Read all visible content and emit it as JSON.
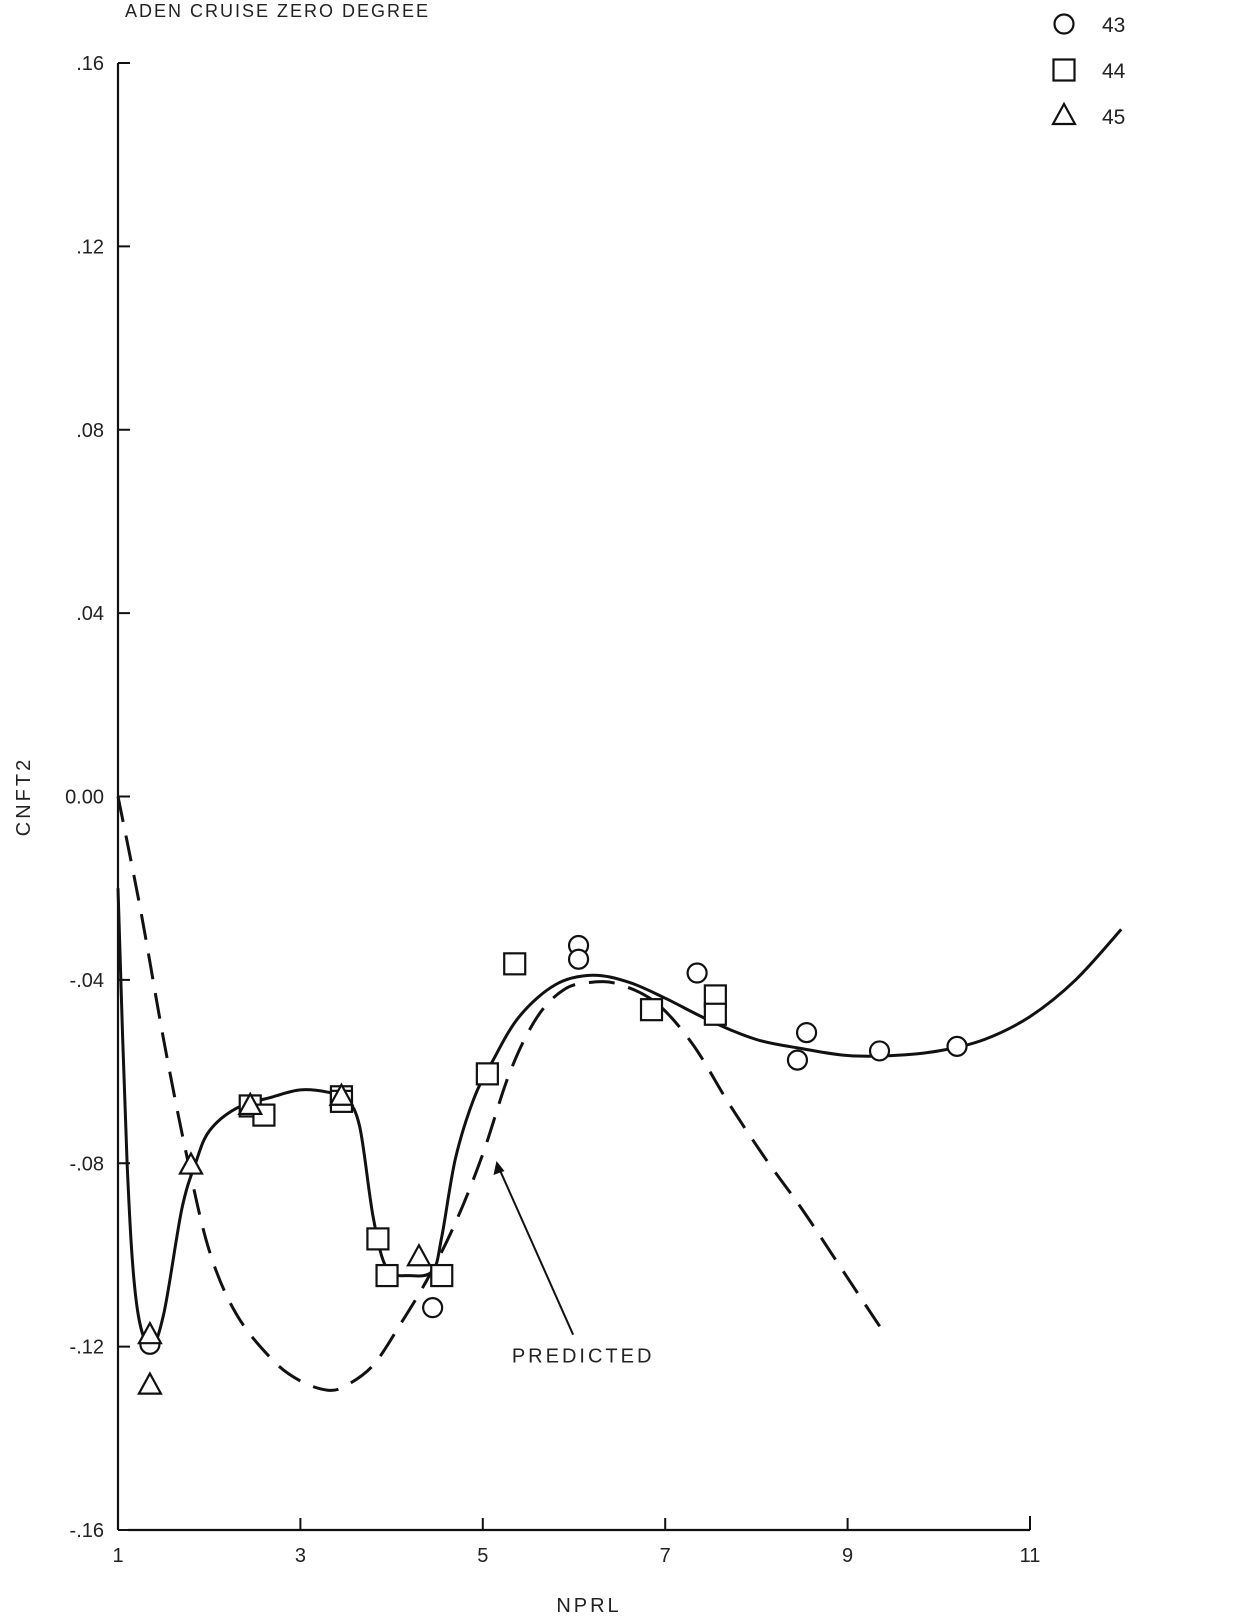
{
  "chart_data": {
    "type": "scatter",
    "title": "ADEN CRUISE ZERO DEGREE",
    "xlabel": "NPRL",
    "ylabel": "CNFT2",
    "xlim": [
      1,
      11
    ],
    "ylim": [
      -0.16,
      0.16
    ],
    "x_ticks": [
      {
        "value": 1,
        "label": "1"
      },
      {
        "value": 3,
        "label": "3"
      },
      {
        "value": 5,
        "label": "5"
      },
      {
        "value": 7,
        "label": "7"
      },
      {
        "value": 9,
        "label": "9"
      },
      {
        "value": 11,
        "label": "11"
      }
    ],
    "y_ticks": [
      {
        "value": 0.16,
        "label": ".16"
      },
      {
        "value": 0.12,
        "label": ".12"
      },
      {
        "value": 0.08,
        "label": ".08"
      },
      {
        "value": 0.04,
        "label": ".04"
      },
      {
        "value": 0.0,
        "label": "0.00"
      },
      {
        "value": -0.04,
        "label": "-.04"
      },
      {
        "value": -0.08,
        "label": "-.08"
      },
      {
        "value": -0.12,
        "label": "-.12"
      },
      {
        "value": -0.16,
        "label": "-.16"
      }
    ],
    "legend_position": "top-right",
    "series": [
      {
        "name": "43",
        "marker": "circle",
        "points": [
          [
            1.35,
            -0.1195
          ],
          [
            4.45,
            -0.1115
          ],
          [
            6.05,
            -0.0325
          ],
          [
            6.05,
            -0.0355
          ],
          [
            7.35,
            -0.0385
          ],
          [
            8.45,
            -0.0575
          ],
          [
            8.55,
            -0.0515
          ],
          [
            9.35,
            -0.0555
          ],
          [
            10.2,
            -0.0545
          ]
        ]
      },
      {
        "name": "44",
        "marker": "square",
        "points": [
          [
            2.45,
            -0.0675
          ],
          [
            2.6,
            -0.0695
          ],
          [
            3.45,
            -0.0655
          ],
          [
            3.45,
            -0.0665
          ],
          [
            3.85,
            -0.0965
          ],
          [
            3.95,
            -0.1045
          ],
          [
            4.55,
            -0.1045
          ],
          [
            5.05,
            -0.0605
          ],
          [
            5.35,
            -0.0365
          ],
          [
            6.85,
            -0.0465
          ],
          [
            7.55,
            -0.0435
          ],
          [
            7.55,
            -0.0475
          ]
        ]
      },
      {
        "name": "45",
        "marker": "triangle",
        "points": [
          [
            1.35,
            -0.1175
          ],
          [
            1.35,
            -0.1285
          ],
          [
            1.8,
            -0.0805
          ],
          [
            2.45,
            -0.0675
          ],
          [
            3.45,
            -0.0655
          ],
          [
            4.3,
            -0.1005
          ]
        ]
      }
    ],
    "curves": [
      {
        "style": "solid",
        "points": [
          [
            1.0,
            -0.02
          ],
          [
            1.1,
            -0.08
          ],
          [
            1.2,
            -0.11
          ],
          [
            1.35,
            -0.12
          ],
          [
            1.5,
            -0.113
          ],
          [
            1.7,
            -0.09
          ],
          [
            1.85,
            -0.08
          ],
          [
            2.0,
            -0.073
          ],
          [
            2.3,
            -0.068
          ],
          [
            2.7,
            -0.0655
          ],
          [
            3.0,
            -0.064
          ],
          [
            3.3,
            -0.0645
          ],
          [
            3.5,
            -0.066
          ],
          [
            3.65,
            -0.072
          ],
          [
            3.8,
            -0.092
          ],
          [
            3.95,
            -0.103
          ],
          [
            4.2,
            -0.1045
          ],
          [
            4.45,
            -0.1035
          ],
          [
            4.55,
            -0.096
          ],
          [
            4.7,
            -0.079
          ],
          [
            4.9,
            -0.066
          ],
          [
            5.1,
            -0.058
          ],
          [
            5.4,
            -0.048
          ],
          [
            5.8,
            -0.041
          ],
          [
            6.2,
            -0.039
          ],
          [
            6.6,
            -0.0405
          ],
          [
            7.0,
            -0.044
          ],
          [
            7.5,
            -0.049
          ],
          [
            8.0,
            -0.053
          ],
          [
            8.5,
            -0.055
          ],
          [
            9.0,
            -0.0565
          ],
          [
            9.5,
            -0.0565
          ],
          [
            10.0,
            -0.0555
          ],
          [
            10.5,
            -0.053
          ],
          [
            11.0,
            -0.048
          ],
          [
            11.5,
            -0.04
          ],
          [
            12.0,
            -0.029
          ]
        ]
      },
      {
        "style": "dashed",
        "label": "PREDICTED",
        "points": [
          [
            1.0,
            0.0
          ],
          [
            1.25,
            -0.025
          ],
          [
            1.5,
            -0.053
          ],
          [
            1.75,
            -0.078
          ],
          [
            2.0,
            -0.099
          ],
          [
            2.3,
            -0.113
          ],
          [
            2.7,
            -0.123
          ],
          [
            3.0,
            -0.1275
          ],
          [
            3.3,
            -0.1295
          ],
          [
            3.5,
            -0.1285
          ],
          [
            3.8,
            -0.124
          ],
          [
            4.1,
            -0.115
          ],
          [
            4.4,
            -0.105
          ],
          [
            4.7,
            -0.093
          ],
          [
            5.0,
            -0.078
          ],
          [
            5.3,
            -0.06
          ],
          [
            5.6,
            -0.048
          ],
          [
            5.9,
            -0.042
          ],
          [
            6.2,
            -0.0405
          ],
          [
            6.5,
            -0.041
          ],
          [
            6.9,
            -0.045
          ],
          [
            7.3,
            -0.054
          ],
          [
            7.7,
            -0.067
          ],
          [
            8.1,
            -0.079
          ],
          [
            8.5,
            -0.09
          ],
          [
            8.9,
            -0.102
          ],
          [
            9.2,
            -0.111
          ],
          [
            9.4,
            -0.117
          ]
        ]
      }
    ],
    "annotations": [
      {
        "text": "PREDICTED",
        "x": 6.1,
        "y": -0.1235,
        "arrow_to": [
          5.15,
          -0.0795
        ]
      }
    ]
  }
}
